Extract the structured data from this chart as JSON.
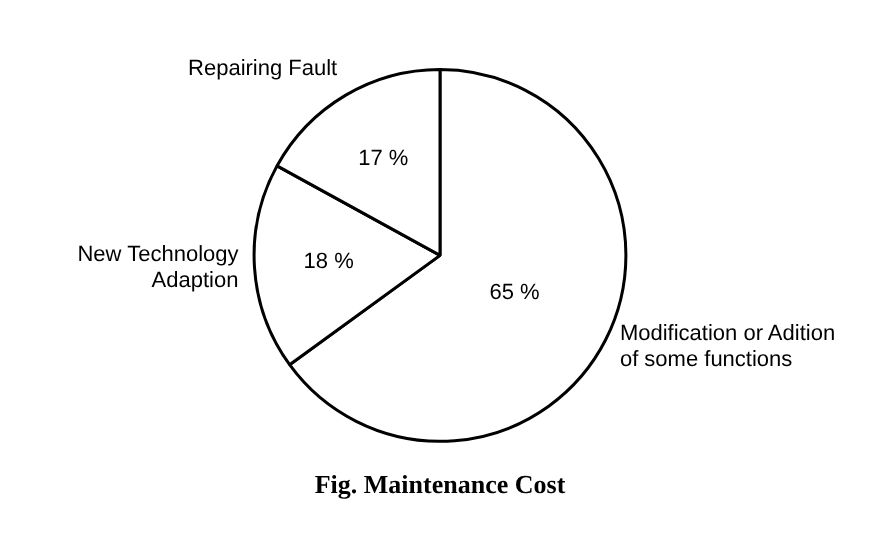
{
  "chart_data": {
    "type": "pie",
    "title": "Fig. Maintenance Cost",
    "categories": [
      "Modification or Adition of some functions",
      "New Technology Adaption",
      "Repairing Fault"
    ],
    "values": [
      65,
      18,
      17
    ],
    "colors": [
      "#ffffff",
      "#ffffff",
      "#ffffff"
    ],
    "value_labels": [
      "65 %",
      "18 %",
      "17 %"
    ],
    "legend": false
  }
}
